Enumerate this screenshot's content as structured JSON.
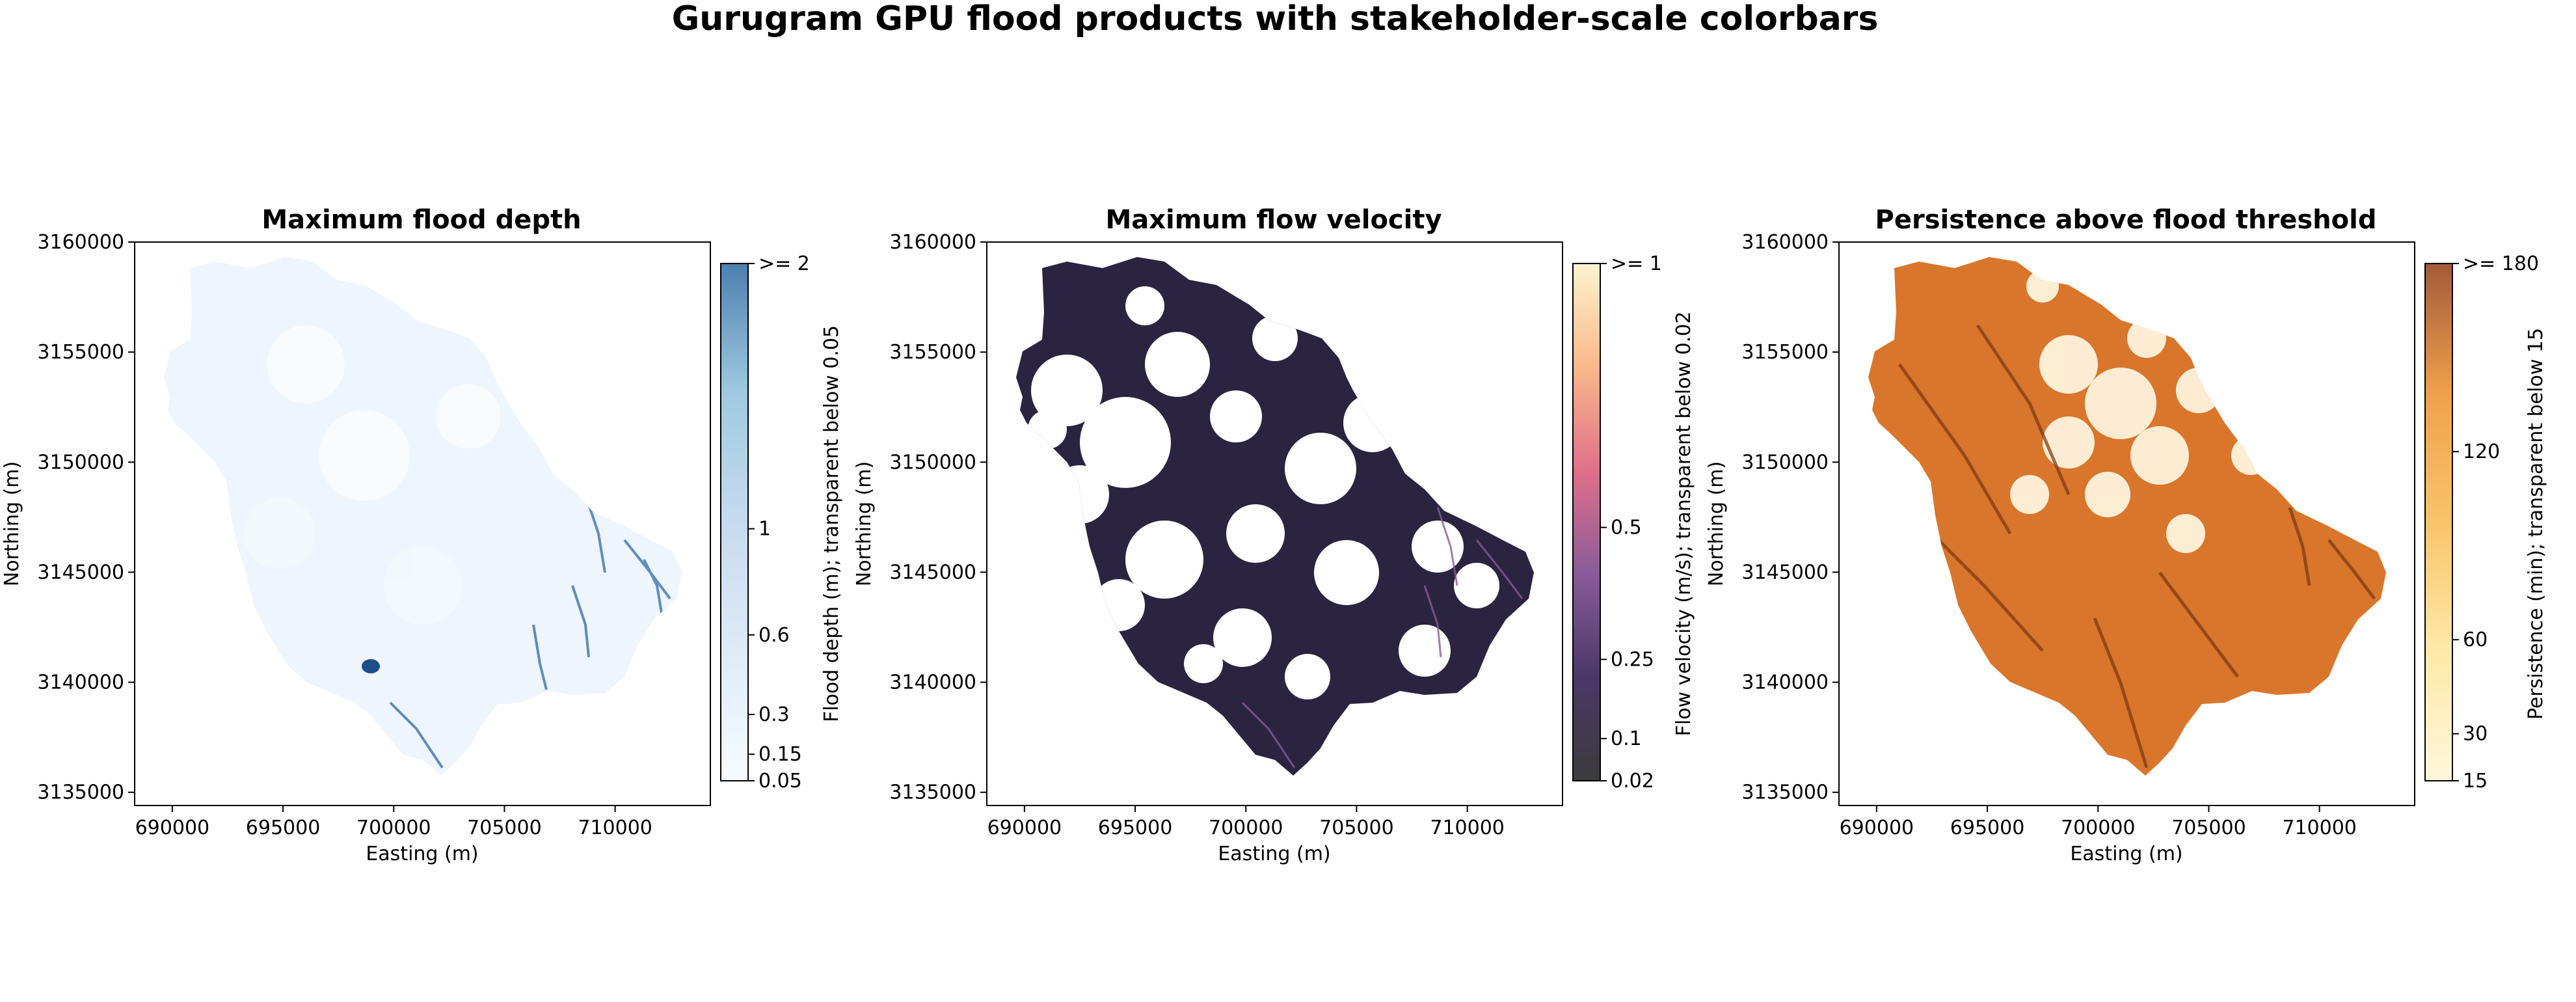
{
  "figure": {
    "title": "Gurugram GPU flood products with stakeholder-scale colorbars"
  },
  "chart_data": [
    {
      "type": "heatmap",
      "title": "Maximum flood depth",
      "xlabel": "Easting (m)",
      "ylabel": "Northing (m)",
      "xticks": [
        690000,
        695000,
        700000,
        705000,
        710000
      ],
      "yticks": [
        3135000,
        3140000,
        3145000,
        3150000,
        3155000,
        3160000
      ],
      "xlim": [
        688300,
        714300
      ],
      "ylim": [
        3134400,
        3160000
      ],
      "colormap": "Blues",
      "colorbar": {
        "label": "Flood depth (m); transparent below 0.05",
        "ticks": [
          0.05,
          0.15,
          0.3,
          0.6,
          1,
          2
        ],
        "tick_labels": [
          "0.05",
          "0.15",
          "0.3",
          "0.6",
          "1",
          ">= 2"
        ],
        "colors": [
          "#f7fbff",
          "#deebf7",
          "#c6dbef",
          "#9ecae1",
          "#4d7fb0"
        ]
      }
    },
    {
      "type": "heatmap",
      "title": "Maximum flow velocity",
      "xlabel": "Easting (m)",
      "ylabel": "Northing (m)",
      "xticks": [
        690000,
        695000,
        700000,
        705000,
        710000
      ],
      "yticks": [
        3135000,
        3140000,
        3145000,
        3150000,
        3155000,
        3160000
      ],
      "xlim": [
        688300,
        714300
      ],
      "ylim": [
        3134400,
        3160000
      ],
      "colormap": "magma",
      "colorbar": {
        "label": "Flow velocity (m/s); transparent below 0.02",
        "ticks": [
          0.02,
          0.1,
          0.25,
          0.5,
          1
        ],
        "tick_labels": [
          "0.02",
          "0.1",
          "0.25",
          "0.5",
          ">= 1"
        ],
        "colors": [
          "#3b3b3b",
          "#4a3868",
          "#8a5a9a",
          "#e0708a",
          "#f9b88a",
          "#fdf3cf"
        ]
      }
    },
    {
      "type": "heatmap",
      "title": "Persistence above flood threshold",
      "xlabel": "Easting (m)",
      "ylabel": "Northing (m)",
      "xticks": [
        690000,
        695000,
        700000,
        705000,
        710000
      ],
      "yticks": [
        3135000,
        3140000,
        3145000,
        3150000,
        3155000,
        3160000
      ],
      "xlim": [
        688300,
        714300
      ],
      "ylim": [
        3134400,
        3160000
      ],
      "colormap": "YlOrBr",
      "colorbar": {
        "label": "Persistence (min); transparent below 15",
        "ticks": [
          15,
          30,
          60,
          120,
          180
        ],
        "tick_labels": [
          "15",
          "30",
          "60",
          "120",
          ">= 180"
        ],
        "colors": [
          "#fff7dc",
          "#ffe9a8",
          "#f9c46a",
          "#f0a04a",
          "#a35a3a"
        ]
      }
    }
  ]
}
